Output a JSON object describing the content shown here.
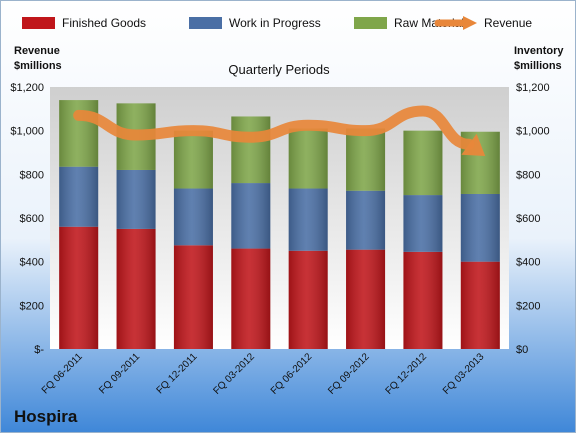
{
  "chart_data": {
    "type": "bar",
    "subtype": "stacked bar with line overlay",
    "company": "Hospira",
    "title": "Quarterly Periods",
    "left_axis_label": [
      "Revenue",
      "$millions"
    ],
    "right_axis_label": [
      "Inventory",
      "$millions"
    ],
    "categories": [
      "FQ 06-2011",
      "FQ 09-2011",
      "FQ 12-2011",
      "FQ 03-2012",
      "FQ 06-2012",
      "FQ 09-2012",
      "FQ 12-2012",
      "FQ 03-2013"
    ],
    "ylim": [
      0,
      1200
    ],
    "left_ticks": [
      "$-",
      "$200",
      "$400",
      "$600",
      "$800",
      "$1,000",
      "$1,200"
    ],
    "right_ticks": [
      "$0",
      "$200",
      "$400",
      "$600",
      "$800",
      "$1,000",
      "$1,200"
    ],
    "series": [
      {
        "name": "Finished Goods",
        "color": "#c0161b",
        "values": [
          560,
          550,
          475,
          460,
          450,
          455,
          445,
          400
        ]
      },
      {
        "name": "Work in Progress",
        "color": "#4a6fa5",
        "values": [
          275,
          270,
          260,
          300,
          285,
          270,
          260,
          310
        ]
      },
      {
        "name": "Raw Materials",
        "color": "#7fa64a",
        "values": [
          305,
          305,
          265,
          305,
          275,
          285,
          295,
          285
        ]
      }
    ],
    "line_series": {
      "name": "Revenue",
      "color": "#e8873a",
      "values": [
        1070,
        980,
        1000,
        970,
        1025,
        1000,
        1090,
        900
      ]
    },
    "legend_position": "top",
    "grid": false
  }
}
